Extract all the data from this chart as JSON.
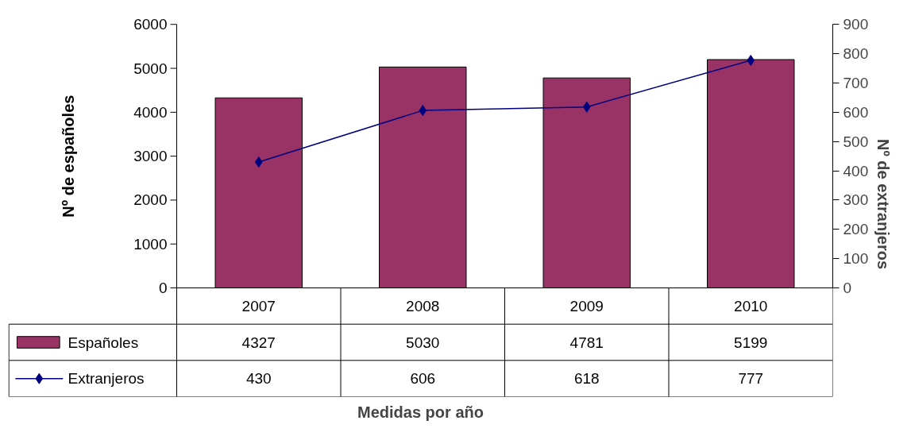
{
  "chart_data": {
    "type": "bar",
    "annotations": [
      "Medidas por año"
    ],
    "ylabel": "Nº de españoles",
    "y2label": "Nº de extranjeros",
    "categories": [
      "2007",
      "2008",
      "2009",
      "2010"
    ],
    "series": [
      {
        "name": "Españoles",
        "color": "#993366",
        "values": [
          4327,
          5030,
          4781,
          5199
        ]
      },
      {
        "name": "Extranjeros",
        "type": "line",
        "axis": "y2",
        "color": "#000080",
        "marker": "diamond",
        "values": [
          430,
          606,
          618,
          777
        ]
      }
    ],
    "ylim": [
      0,
      6000
    ],
    "yticks": [
      0,
      1000,
      2000,
      3000,
      4000,
      5000,
      6000
    ],
    "y2lim": [
      0,
      900
    ],
    "y2ticks": [
      0,
      100,
      200,
      300,
      400,
      500,
      600,
      700,
      800,
      900
    ],
    "grid": false,
    "legend": "bottom",
    "data_labels": true
  }
}
